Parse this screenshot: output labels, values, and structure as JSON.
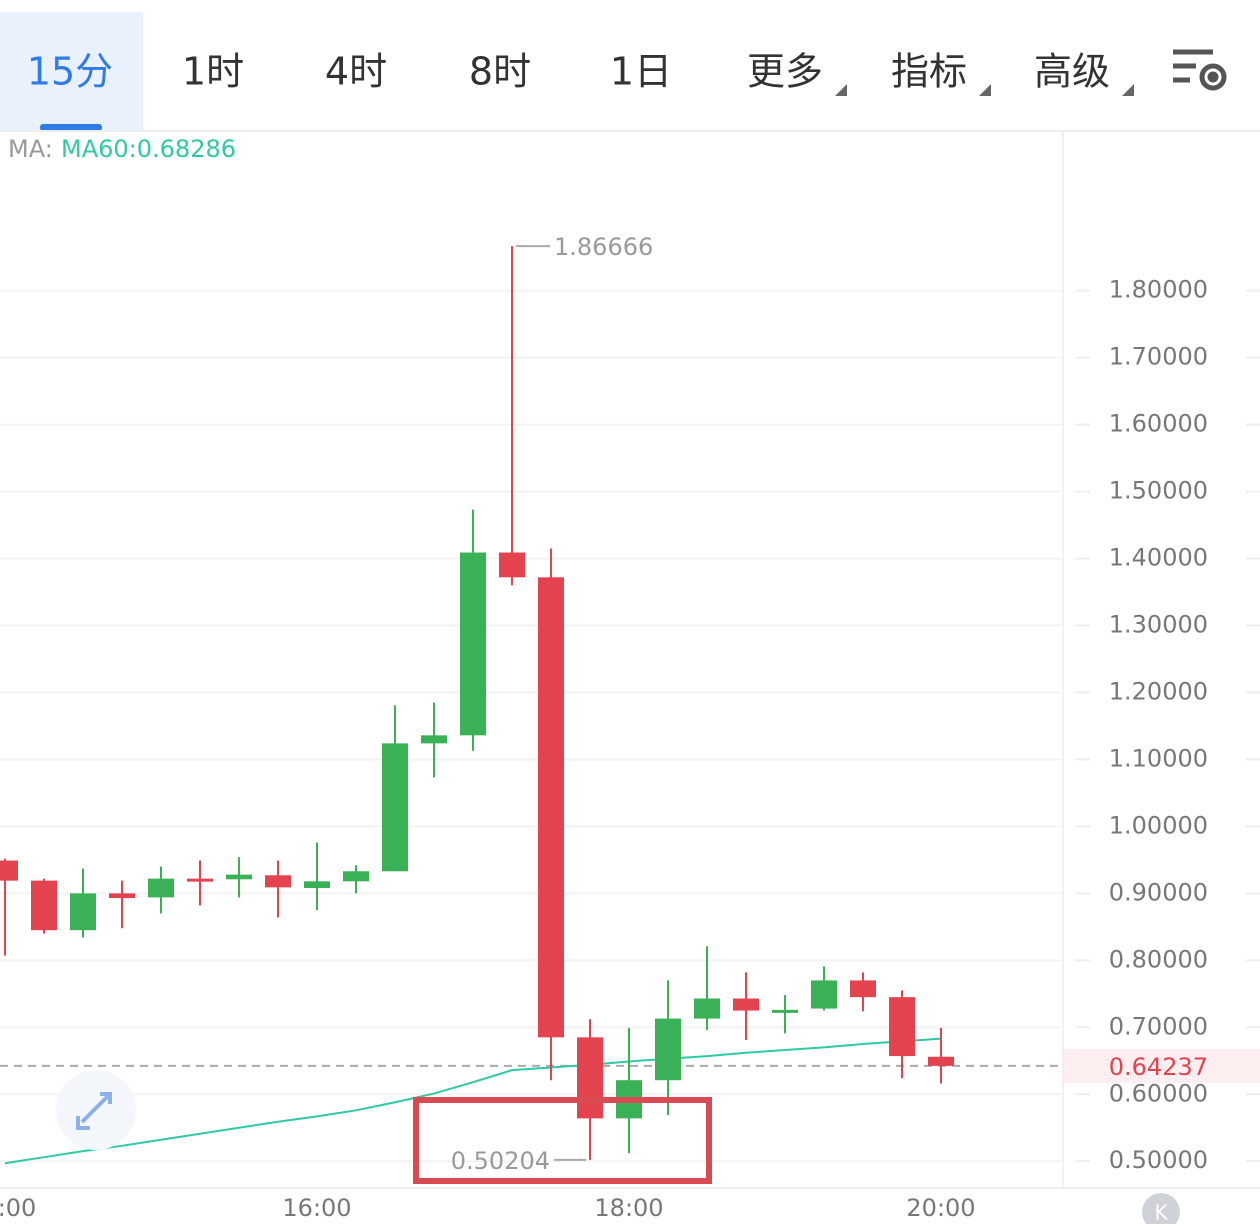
{
  "toolbar": {
    "tabs": [
      "15分",
      "1时",
      "4时",
      "8时",
      "1日",
      "更多",
      "指标",
      "高级"
    ]
  },
  "chart_data": {
    "type": "candlestick",
    "indicator_label": "MA:",
    "ma_label": "MA60:0.68286",
    "categories": [
      ":00",
      null,
      null,
      null,
      null,
      null,
      null,
      null,
      "16:00",
      null,
      null,
      null,
      null,
      null,
      null,
      null,
      "18:00",
      null,
      null,
      null,
      null,
      null,
      null,
      null,
      "20:00"
    ],
    "open": [
      0.949,
      0.919,
      0.845,
      0.9,
      0.894,
      0.922,
      0.921,
      0.927,
      0.908,
      0.918,
      0.933,
      1.124,
      1.136,
      1.409,
      1.372,
      0.685,
      0.564,
      0.621,
      0.713,
      0.743,
      0.725,
      0.728,
      0.77,
      0.745,
      0.656
    ],
    "high": [
      0.952,
      0.922,
      0.937,
      0.919,
      0.94,
      0.949,
      0.954,
      0.949,
      0.976,
      0.942,
      1.181,
      1.185,
      1.473,
      1.86666,
      1.415,
      0.712,
      0.699,
      0.77,
      0.821,
      0.782,
      0.748,
      0.791,
      0.782,
      0.755,
      0.699
    ],
    "low": [
      0.807,
      0.84,
      0.834,
      0.848,
      0.87,
      0.882,
      0.894,
      0.864,
      0.875,
      0.9,
      0.933,
      1.073,
      1.113,
      1.36,
      0.621,
      0.50204,
      0.512,
      0.569,
      0.696,
      0.681,
      0.691,
      0.725,
      0.724,
      0.624,
      0.616
    ],
    "close": [
      0.919,
      0.845,
      0.9,
      0.893,
      0.922,
      0.92,
      0.928,
      0.909,
      0.918,
      0.933,
      1.124,
      1.136,
      1.409,
      1.372,
      0.685,
      0.564,
      0.621,
      0.713,
      0.743,
      0.725,
      0.726,
      0.77,
      0.745,
      0.657,
      0.64237
    ],
    "up_color": "#3bb157",
    "down_color": "#e2434f",
    "ma": {
      "name": "MA60",
      "color": "#2fc9a5",
      "values": [
        0.497,
        0.506,
        0.515,
        0.523,
        0.532,
        0.541,
        0.55,
        0.559,
        0.567,
        0.576,
        0.588,
        0.601,
        0.618,
        0.636,
        0.64,
        0.644,
        0.649,
        0.653,
        0.657,
        0.662,
        0.666,
        0.67,
        0.675,
        0.679,
        0.683
      ]
    },
    "max_label": 1.86666,
    "min_label": 0.50204,
    "last_price": 0.64237,
    "ylim": [
      0.46,
      2.04
    ],
    "yticks": [
      {
        "value": 0.5,
        "label": "0.50000"
      },
      {
        "value": 0.6,
        "label": "0.60000"
      },
      {
        "value": 0.7,
        "label": "0.70000"
      },
      {
        "value": 0.8,
        "label": "0.80000"
      },
      {
        "value": 0.9,
        "label": "0.90000"
      },
      {
        "value": 1.0,
        "label": "1.00000"
      },
      {
        "value": 1.1,
        "label": "1.10000"
      },
      {
        "value": 1.2,
        "label": "1.20000"
      },
      {
        "value": 1.3,
        "label": "1.30000"
      },
      {
        "value": 1.4,
        "label": "1.40000"
      },
      {
        "value": 1.5,
        "label": "1.50000"
      },
      {
        "value": 1.6,
        "label": "1.60000"
      },
      {
        "value": 1.7,
        "label": "1.70000"
      },
      {
        "value": 1.8,
        "label": "1.80000"
      }
    ],
    "grid": true,
    "logo": "K"
  }
}
